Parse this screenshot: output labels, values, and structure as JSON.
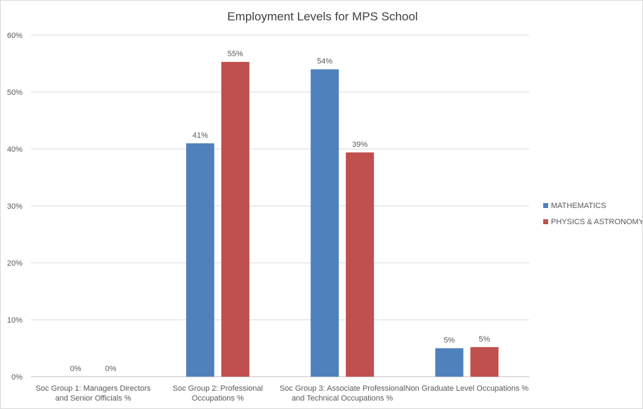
{
  "chart_data": {
    "type": "bar",
    "title": "Employment Levels for MPS School",
    "xlabel": "",
    "ylabel": "",
    "ylim": [
      0,
      60
    ],
    "yticks": [
      "0%",
      "10%",
      "20%",
      "30%",
      "40%",
      "50%",
      "60%"
    ],
    "grid": true,
    "legend_position": "right",
    "categories": [
      [
        "Soc Group 1: Managers Directors",
        "and Senior Officials %"
      ],
      [
        "Soc Group 2: Professional",
        "Occupations %"
      ],
      [
        "Soc Group 3: Associate Professional",
        "and Technical Occupations %"
      ],
      [
        "Non Graduate Level Occupations %"
      ]
    ],
    "series": [
      {
        "name": "MATHEMATICS",
        "color": "#4f81bd",
        "values": [
          0,
          41,
          54,
          5
        ],
        "labels": [
          "0%",
          "41%",
          "54%",
          "5%"
        ]
      },
      {
        "name": "PHYSICS & ASTRONOMY",
        "color": "#c0504d",
        "values": [
          0,
          55.3,
          39.4,
          5.2
        ],
        "labels": [
          "0%",
          "55%",
          "39%",
          "5%"
        ]
      }
    ]
  }
}
